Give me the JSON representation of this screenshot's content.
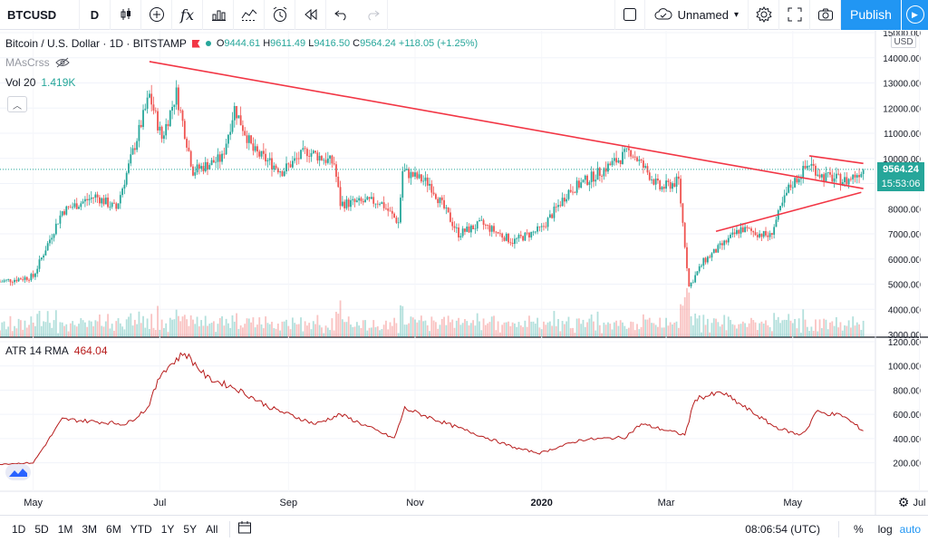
{
  "toolbar": {
    "symbol": "BTCUSD",
    "interval": "D",
    "indicators_label": "fx",
    "layout_name": "Unnamed",
    "publish_label": "Publish"
  },
  "legend": {
    "title": "Bitcoin / U.S. Dollar · 1D · BITSTAMP",
    "ohlc": {
      "o_label": "O",
      "o": "9444.61",
      "h_label": "H",
      "h": "9611.49",
      "l_label": "L",
      "l": "9416.50",
      "c_label": "C",
      "c": "9564.24",
      "change": "+118.05 (+1.25%)"
    },
    "ma_label": "MAsCrss",
    "vol_label": "Vol 20",
    "vol_value": "1.419K",
    "atr_label": "ATR 14 RMA",
    "atr_value": "464.04"
  },
  "price_scale": {
    "currency": "USD",
    "last_price": "9564.24",
    "countdown": "15:53:06",
    "labels": [
      "15000.00",
      "14000.00",
      "13000.00",
      "12000.00",
      "11000.00",
      "10000.00",
      "9000.00",
      "8000.00",
      "7000.00",
      "6000.00",
      "5000.00",
      "4000.00",
      "3000.00"
    ]
  },
  "atr_scale": {
    "labels": [
      "1200.00",
      "1000.00",
      "800.00",
      "600.00",
      "400.00",
      "200.00"
    ]
  },
  "time_axis": {
    "labels": [
      "May",
      "Jul",
      "Sep",
      "Nov",
      "2020",
      "Mar",
      "May",
      "Jul"
    ]
  },
  "bottombar": {
    "ranges": [
      "1D",
      "5D",
      "1M",
      "3M",
      "6M",
      "YTD",
      "1Y",
      "5Y",
      "All"
    ],
    "time": "08:06:54 (UTC)",
    "percent": "%",
    "log": "log",
    "auto": "auto"
  },
  "colors": {
    "up": "#26a69a",
    "down": "#ef5350",
    "trendline": "#f23645",
    "atr": "#b71c1c",
    "accent": "#2196f3"
  },
  "chart_data": {
    "type": "candlestick",
    "title": "Bitcoin / U.S. Dollar · 1D · BITSTAMP",
    "y_axis_price": [
      3000,
      15000
    ],
    "y_axis_atr": [
      100,
      1200
    ],
    "price_anchors": [
      [
        "2019-04-15",
        5100
      ],
      [
        "2019-05-01",
        5300
      ],
      [
        "2019-05-15",
        7900
      ],
      [
        "2019-05-31",
        8500
      ],
      [
        "2019-06-10",
        8000
      ],
      [
        "2019-06-26",
        12500
      ],
      [
        "2019-07-02",
        10800
      ],
      [
        "2019-07-09",
        12600
      ],
      [
        "2019-07-17",
        9500
      ],
      [
        "2019-07-31",
        10000
      ],
      [
        "2019-08-06",
        12000
      ],
      [
        "2019-08-15",
        10300
      ],
      [
        "2019-08-29",
        9500
      ],
      [
        "2019-09-10",
        10300
      ],
      [
        "2019-09-23",
        9800
      ],
      [
        "2019-09-26",
        8200
      ],
      [
        "2019-10-15",
        8300
      ],
      [
        "2019-10-24",
        7450
      ],
      [
        "2019-10-26",
        9500
      ],
      [
        "2019-11-08",
        9000
      ],
      [
        "2019-11-22",
        7000
      ],
      [
        "2019-12-03",
        7400
      ],
      [
        "2019-12-18",
        6700
      ],
      [
        "2020-01-01",
        7200
      ],
      [
        "2020-01-14",
        8700
      ],
      [
        "2020-01-28",
        9400
      ],
      [
        "2020-02-13",
        10300
      ],
      [
        "2020-02-27",
        8800
      ],
      [
        "2020-03-07",
        9100
      ],
      [
        "2020-03-12",
        4900
      ],
      [
        "2020-03-19",
        5900
      ],
      [
        "2020-04-06",
        7200
      ],
      [
        "2020-04-20",
        6900
      ],
      [
        "2020-04-29",
        8800
      ],
      [
        "2020-05-09",
        9800
      ],
      [
        "2020-05-15",
        9300
      ],
      [
        "2020-05-27",
        9100
      ],
      [
        "2020-06-04",
        9564
      ]
    ],
    "atr_anchors": [
      [
        "2019-04-15",
        190
      ],
      [
        "2019-05-01",
        200
      ],
      [
        "2019-05-15",
        560
      ],
      [
        "2019-05-31",
        540
      ],
      [
        "2019-06-15",
        520
      ],
      [
        "2019-06-25",
        650
      ],
      [
        "2019-07-02",
        950
      ],
      [
        "2019-07-13",
        1110
      ],
      [
        "2019-07-24",
        900
      ],
      [
        "2019-08-06",
        820
      ],
      [
        "2019-08-24",
        650
      ],
      [
        "2019-09-14",
        520
      ],
      [
        "2019-09-26",
        600
      ],
      [
        "2019-10-22",
        400
      ],
      [
        "2019-10-27",
        650
      ],
      [
        "2019-11-20",
        500
      ],
      [
        "2019-12-20",
        320
      ],
      [
        "2019-12-31",
        280
      ],
      [
        "2020-01-20",
        390
      ],
      [
        "2020-02-10",
        410
      ],
      [
        "2020-02-18",
        520
      ],
      [
        "2020-03-10",
        430
      ],
      [
        "2020-03-15",
        730
      ],
      [
        "2020-03-28",
        780
      ],
      [
        "2020-04-22",
        500
      ],
      [
        "2020-05-04",
        430
      ],
      [
        "2020-05-08",
        480
      ],
      [
        "2020-05-12",
        620
      ],
      [
        "2020-05-25",
        590
      ],
      [
        "2020-06-04",
        464
      ]
    ],
    "trendlines": [
      {
        "from": [
          "2019-06-26",
          13850
        ],
        "to": [
          "2020-06-04",
          8800
        ]
      },
      {
        "from": [
          "2020-03-25",
          7100
        ],
        "to": [
          "2020-06-03",
          8650
        ]
      },
      {
        "from": [
          "2020-05-09",
          10100
        ],
        "to": [
          "2020-06-04",
          9800
        ]
      }
    ],
    "last_price_line": 9564.24
  }
}
